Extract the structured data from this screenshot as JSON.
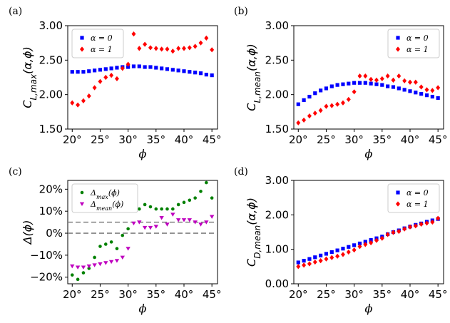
{
  "colors": {
    "blue": "#0000ff",
    "red": "#ff0000",
    "green": "#008000",
    "magenta": "#bf00bf",
    "dash": "#808080"
  },
  "chart_data": [
    {
      "panel_label": "(a)",
      "type": "scatter",
      "ylabel": "C_L,max(α,ϕ)",
      "xlabel": "ϕ",
      "xlim": [
        19.2,
        46
      ],
      "ylim": [
        1.5,
        3.0
      ],
      "xticks": [
        20,
        25,
        30,
        35,
        40,
        45
      ],
      "xtick_labels": [
        "20°",
        "25°",
        "30°",
        "35°",
        "40°",
        "45°"
      ],
      "yticks": [
        1.5,
        2.0,
        2.5,
        3.0
      ],
      "ytick_labels": [
        "1.50",
        "2.00",
        "2.50",
        "3.00"
      ],
      "legend_position": "upper-left",
      "series": [
        {
          "name": "α = 0",
          "marker": "square",
          "color": "blue",
          "x": [
            20,
            21,
            22,
            23,
            24,
            25,
            26,
            27,
            28,
            29,
            30,
            31,
            32,
            33,
            34,
            35,
            36,
            37,
            38,
            39,
            40,
            41,
            42,
            43,
            44,
            45
          ],
          "y": [
            2.33,
            2.33,
            2.33,
            2.34,
            2.35,
            2.36,
            2.37,
            2.38,
            2.39,
            2.4,
            2.4,
            2.41,
            2.41,
            2.4,
            2.4,
            2.39,
            2.38,
            2.37,
            2.36,
            2.35,
            2.34,
            2.33,
            2.32,
            2.31,
            2.29,
            2.28
          ]
        },
        {
          "name": "α = 1",
          "marker": "diamond",
          "color": "red",
          "x": [
            20,
            21,
            22,
            23,
            24,
            25,
            26,
            27,
            28,
            29,
            30,
            31,
            32,
            33,
            34,
            35,
            36,
            37,
            38,
            39,
            40,
            41,
            42,
            43,
            44,
            45
          ],
          "y": [
            1.88,
            1.85,
            1.91,
            1.98,
            2.1,
            2.19,
            2.25,
            2.28,
            2.23,
            2.38,
            2.44,
            2.88,
            2.67,
            2.73,
            2.68,
            2.67,
            2.66,
            2.66,
            2.63,
            2.67,
            2.67,
            2.68,
            2.7,
            2.75,
            2.82,
            2.65
          ]
        }
      ]
    },
    {
      "panel_label": "(b)",
      "type": "scatter",
      "ylabel": "C_L,mean(α,ϕ)",
      "xlabel": "ϕ",
      "xlim": [
        19.2,
        46
      ],
      "ylim": [
        1.5,
        3.0
      ],
      "xticks": [
        20,
        25,
        30,
        35,
        40,
        45
      ],
      "xtick_labels": [
        "20°",
        "25°",
        "30°",
        "35°",
        "40°",
        "45°"
      ],
      "yticks": [
        1.5,
        2.0,
        2.5,
        3.0
      ],
      "ytick_labels": [
        "1.50",
        "2.00",
        "2.50",
        "3.00"
      ],
      "legend_position": "upper-right",
      "series": [
        {
          "name": "α = 0",
          "marker": "square",
          "color": "blue",
          "x": [
            20,
            21,
            22,
            23,
            24,
            25,
            26,
            27,
            28,
            29,
            30,
            31,
            32,
            33,
            34,
            35,
            36,
            37,
            38,
            39,
            40,
            41,
            42,
            43,
            44,
            45
          ],
          "y": [
            1.86,
            1.92,
            1.97,
            2.02,
            2.06,
            2.09,
            2.12,
            2.14,
            2.15,
            2.16,
            2.17,
            2.17,
            2.17,
            2.16,
            2.15,
            2.14,
            2.12,
            2.11,
            2.09,
            2.07,
            2.05,
            2.03,
            2.01,
            1.99,
            1.97,
            1.95
          ]
        },
        {
          "name": "α = 1",
          "marker": "diamond",
          "color": "red",
          "x": [
            20,
            21,
            22,
            23,
            24,
            25,
            26,
            27,
            28,
            29,
            30,
            31,
            32,
            33,
            34,
            35,
            36,
            37,
            38,
            39,
            40,
            41,
            42,
            43,
            44,
            45
          ],
          "y": [
            1.59,
            1.63,
            1.69,
            1.73,
            1.77,
            1.83,
            1.84,
            1.86,
            1.88,
            1.93,
            2.04,
            2.27,
            2.27,
            2.22,
            2.21,
            2.23,
            2.27,
            2.21,
            2.27,
            2.2,
            2.18,
            2.18,
            2.11,
            2.07,
            2.06,
            2.1
          ]
        }
      ]
    },
    {
      "panel_label": "(c)",
      "type": "scatter",
      "ylabel": "Δ(ϕ)",
      "xlabel": "ϕ",
      "xlim": [
        19.2,
        46
      ],
      "ylim": [
        -23,
        24
      ],
      "xticks": [
        20,
        25,
        30,
        35,
        40,
        45
      ],
      "xtick_labels": [
        "20°",
        "25°",
        "30°",
        "35°",
        "40°",
        "45°"
      ],
      "yticks": [
        -20,
        -10,
        0,
        10,
        20
      ],
      "ytick_labels": [
        "−20%",
        "−10%",
        "0%",
        "10%",
        "20%"
      ],
      "hlines": [
        0,
        5
      ],
      "legend_position": "upper-left",
      "series": [
        {
          "name": "Δmax(ϕ)",
          "name_base": "Δ",
          "name_sub": "max",
          "name_suffix": "(ϕ)",
          "marker": "circle",
          "color": "green",
          "x": [
            20,
            21,
            22,
            23,
            24,
            25,
            26,
            27,
            28,
            29,
            30,
            31,
            32,
            33,
            34,
            35,
            36,
            37,
            38,
            39,
            40,
            41,
            42,
            43,
            44,
            45
          ],
          "y": [
            -19,
            -21,
            -18,
            -16,
            -11,
            -6,
            -5,
            -4,
            -7,
            -1,
            2,
            20,
            11,
            13,
            12,
            11,
            11,
            11,
            11,
            13,
            14,
            15,
            16,
            19,
            23,
            16
          ]
        },
        {
          "name": "Δmean(ϕ)",
          "name_base": "Δ",
          "name_sub": "mean",
          "name_suffix": "(ϕ)",
          "marker": "triangle-down",
          "color": "magenta",
          "x": [
            20,
            21,
            22,
            23,
            24,
            25,
            26,
            27,
            28,
            29,
            30,
            31,
            32,
            33,
            34,
            35,
            36,
            37,
            38,
            39,
            40,
            41,
            42,
            43,
            44,
            45
          ],
          "y": [
            -15,
            -15.5,
            -15.5,
            -15,
            -14.5,
            -14,
            -13.5,
            -13,
            -12.5,
            -11,
            -7,
            4.5,
            5,
            2.5,
            2.5,
            3,
            7,
            4,
            8.5,
            6,
            6,
            6,
            5,
            4,
            5,
            7.5
          ]
        }
      ]
    },
    {
      "panel_label": "(d)",
      "type": "scatter",
      "ylabel": "C_D,mean(α,ϕ)",
      "xlabel": "ϕ",
      "xlim": [
        19.2,
        46
      ],
      "ylim": [
        0.0,
        3.0
      ],
      "xticks": [
        20,
        25,
        30,
        35,
        40,
        45
      ],
      "xtick_labels": [
        "20°",
        "25°",
        "30°",
        "35°",
        "40°",
        "45°"
      ],
      "yticks": [
        0.0,
        1.0,
        2.0,
        3.0
      ],
      "ytick_labels": [
        "0.00",
        "1.00",
        "2.00",
        "3.00"
      ],
      "legend_position": "upper-right",
      "series": [
        {
          "name": "α = 0",
          "marker": "square",
          "color": "blue",
          "x": [
            20,
            21,
            22,
            23,
            24,
            25,
            26,
            27,
            28,
            29,
            30,
            31,
            32,
            33,
            34,
            35,
            36,
            37,
            38,
            39,
            40,
            41,
            42,
            43,
            44,
            45
          ],
          "y": [
            0.62,
            0.67,
            0.72,
            0.77,
            0.82,
            0.87,
            0.92,
            0.97,
            1.02,
            1.07,
            1.12,
            1.17,
            1.22,
            1.27,
            1.32,
            1.37,
            1.44,
            1.5,
            1.55,
            1.61,
            1.66,
            1.71,
            1.75,
            1.8,
            1.84,
            1.88
          ]
        },
        {
          "name": "α = 1",
          "marker": "diamond",
          "color": "red",
          "x": [
            20,
            21,
            22,
            23,
            24,
            25,
            26,
            27,
            28,
            29,
            30,
            31,
            32,
            33,
            34,
            35,
            36,
            37,
            38,
            39,
            40,
            41,
            42,
            43,
            44,
            45
          ],
          "y": [
            0.5,
            0.54,
            0.58,
            0.63,
            0.67,
            0.72,
            0.76,
            0.8,
            0.85,
            0.92,
            0.98,
            1.08,
            1.14,
            1.19,
            1.26,
            1.32,
            1.43,
            1.49,
            1.52,
            1.59,
            1.65,
            1.68,
            1.73,
            1.76,
            1.79,
            1.9
          ]
        }
      ]
    }
  ]
}
